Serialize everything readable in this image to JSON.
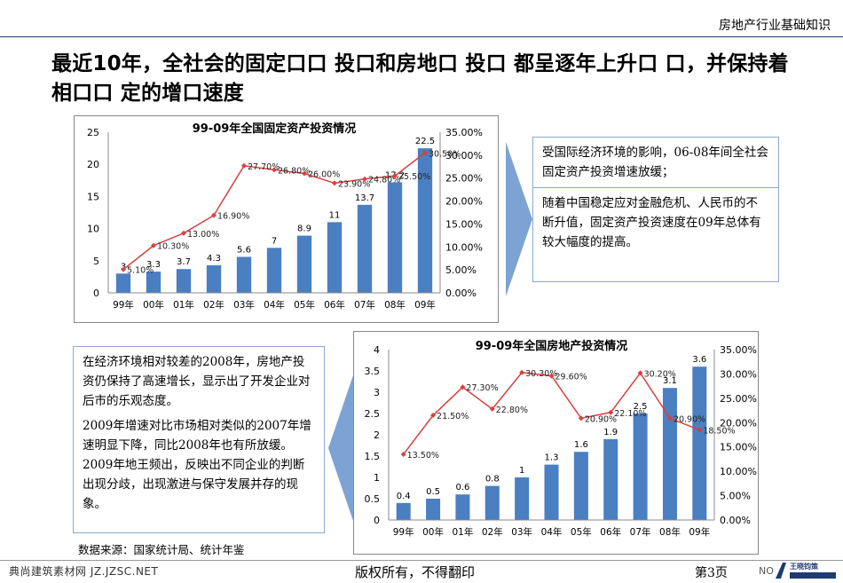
{
  "header": {
    "title": "房地产行业基础知识"
  },
  "main_title": "最近10年，全社会的固定口口 投口和房地口 投口 都呈逐年上升口 口，并保持着相口口 定的增口速度",
  "notes": {
    "top": [
      "受国际经济环境的影响，06-08年间全社会固定资产投资增速放缓；",
      "随着中国稳定应对金融危机、人民币的不断升值，固定资产投资速度在09年总体有较大幅度的提高。"
    ],
    "bottom": [
      "在经济环境相对较差的2008年，房地产投资仍保持了高速增长，显示出了开发企业对后市的乐观态度。",
      "2009年增速对比市场相对类似的2007年增速明显下降，同比2008年也有所放缓。2009年地王频出，反映出不同企业的判断出现分歧，出现激进与保守发展并存的现象。"
    ]
  },
  "source": "数据来源：国家统计局、统计年鉴",
  "footer": {
    "left": "典尚建筑素材网 JZ.JZSC.NET",
    "copyright": "版权所有，不得翻印",
    "page": "第3页",
    "no": "NO",
    "logo_text": "王晓钧策"
  },
  "colors": {
    "bar": "#4a7fc1",
    "line": "#d94040",
    "arrow": "#7da3d4"
  },
  "chart_data": [
    {
      "type": "bar",
      "title": "99-09年全国固定资产投资情况",
      "categories": [
        "99年",
        "00年",
        "01年",
        "02年",
        "03年",
        "04年",
        "05年",
        "06年",
        "07年",
        "08年",
        "09年"
      ],
      "series": [
        {
          "values": [
            3,
            3.3,
            3.7,
            4.3,
            5.6,
            7,
            8.9,
            11,
            13.7,
            17.2,
            22.5
          ],
          "labels": [
            "3",
            "3.3",
            "3.7",
            "4.3",
            "5.6",
            "7",
            "8.9",
            "11",
            "13.7",
            "17.2",
            "22.5"
          ]
        },
        {
          "type": "line",
          "axis": "right",
          "values": [
            5.1,
            10.3,
            13.0,
            16.9,
            27.7,
            26.8,
            26.0,
            23.9,
            24.8,
            25.5,
            30.5
          ],
          "labels": [
            "5.10%",
            "10.30%",
            "13.00%",
            "16.90%",
            "27.70%",
            "26.80%",
            "26.00%",
            "23.90%",
            "24.80%",
            "25.50%",
            "30.50%"
          ]
        }
      ],
      "ylim": [
        0,
        25
      ],
      "yticks": [
        "0",
        "5",
        "10",
        "15",
        "20",
        "25"
      ],
      "y2lim": [
        0,
        35
      ],
      "y2ticks": [
        "0.00%",
        "5.00%",
        "10.00%",
        "15.00%",
        "20.00%",
        "25.00%",
        "30.00%",
        "35.00%"
      ]
    },
    {
      "type": "bar",
      "title": "99-09年全国房地产投资情况",
      "categories": [
        "99年",
        "00年",
        "01年",
        "02年",
        "03年",
        "04年",
        "05年",
        "06年",
        "07年",
        "08年",
        "09年"
      ],
      "series": [
        {
          "values": [
            0.4,
            0.5,
            0.6,
            0.8,
            1,
            1.3,
            1.6,
            1.9,
            2.5,
            3.1,
            3.6
          ],
          "labels": [
            "0.4",
            "0.5",
            "0.6",
            "0.8",
            "1",
            "1.3",
            "1.6",
            "1.9",
            "2.5",
            "3.1",
            "3.6"
          ]
        },
        {
          "type": "line",
          "axis": "right",
          "values": [
            13.5,
            21.5,
            27.3,
            22.8,
            30.3,
            29.6,
            20.9,
            22.1,
            30.2,
            20.9,
            18.5
          ],
          "labels": [
            "13.50%",
            "21.50%",
            "27.30%",
            "22.80%",
            "30.30%",
            "29.60%",
            "20.90%",
            "22.10%",
            "30.20%",
            "20.90%",
            "18.50%"
          ]
        }
      ],
      "ylim": [
        0,
        4
      ],
      "yticks": [
        "0",
        "0.5",
        "1",
        "1.5",
        "2",
        "2.5",
        "3",
        "3.5",
        "4"
      ],
      "y2lim": [
        0,
        35
      ],
      "y2ticks": [
        "0.00%",
        "5.00%",
        "10.00%",
        "15.00%",
        "20.00%",
        "25.00%",
        "30.00%",
        "35.00%"
      ]
    }
  ]
}
